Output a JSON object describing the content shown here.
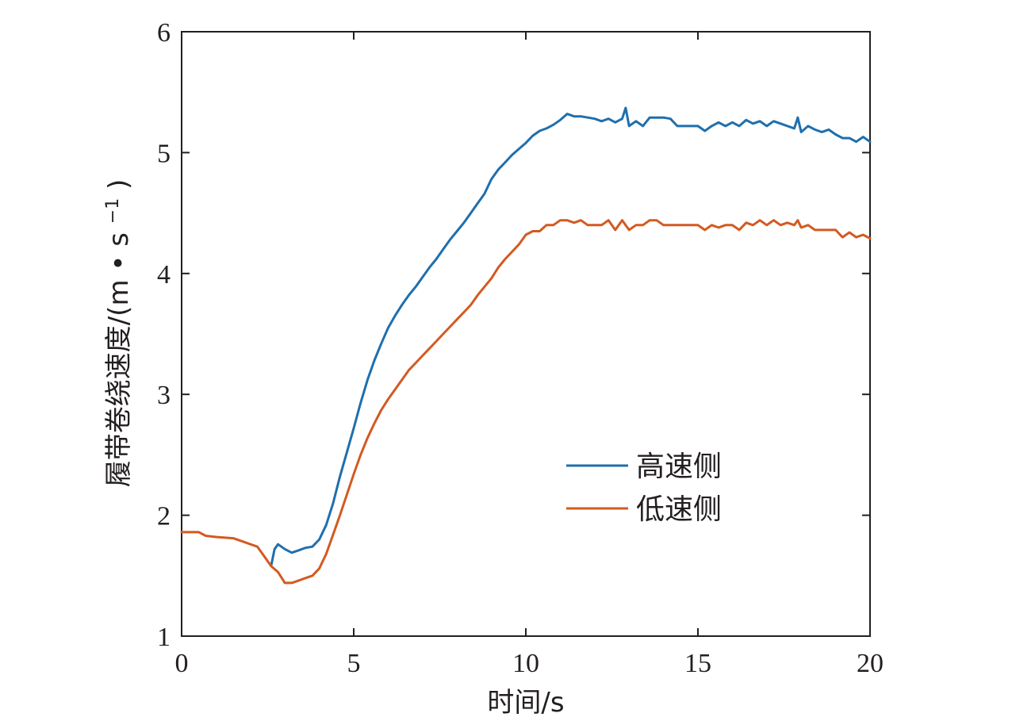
{
  "chart_data": {
    "type": "line",
    "xlabel": "时间/s",
    "ylabel_main": "履带卷绕速度/(m",
    "ylabel_dot": "•",
    "ylabel_s": "s",
    "ylabel_sup": "−1",
    "ylabel_close": ")",
    "xlim": [
      0,
      20
    ],
    "ylim": [
      1,
      6
    ],
    "xticks": [
      0,
      5,
      10,
      15,
      20
    ],
    "yticks": [
      1,
      2,
      3,
      4,
      5,
      6
    ],
    "xtick_labels": [
      "0",
      "5",
      "10",
      "15",
      "20"
    ],
    "ytick_labels": [
      "1",
      "2",
      "3",
      "4",
      "5",
      "6"
    ],
    "grid": false,
    "legend_position": "center-right",
    "series": [
      {
        "name": "高速侧",
        "color": "#1f6fad",
        "points": [
          [
            2.6,
            1.58
          ],
          [
            2.7,
            1.72
          ],
          [
            2.8,
            1.76
          ],
          [
            3.0,
            1.72
          ],
          [
            3.2,
            1.69
          ],
          [
            3.4,
            1.71
          ],
          [
            3.6,
            1.73
          ],
          [
            3.8,
            1.74
          ],
          [
            4.0,
            1.8
          ],
          [
            4.2,
            1.92
          ],
          [
            4.4,
            2.1
          ],
          [
            4.6,
            2.32
          ],
          [
            4.8,
            2.52
          ],
          [
            5.0,
            2.72
          ],
          [
            5.2,
            2.93
          ],
          [
            5.4,
            3.12
          ],
          [
            5.6,
            3.28
          ],
          [
            5.8,
            3.42
          ],
          [
            6.0,
            3.55
          ],
          [
            6.2,
            3.65
          ],
          [
            6.4,
            3.74
          ],
          [
            6.6,
            3.82
          ],
          [
            6.8,
            3.89
          ],
          [
            7.0,
            3.97
          ],
          [
            7.2,
            4.05
          ],
          [
            7.4,
            4.12
          ],
          [
            7.6,
            4.2
          ],
          [
            7.8,
            4.28
          ],
          [
            8.0,
            4.35
          ],
          [
            8.2,
            4.42
          ],
          [
            8.4,
            4.5
          ],
          [
            8.6,
            4.58
          ],
          [
            8.8,
            4.66
          ],
          [
            9.0,
            4.78
          ],
          [
            9.2,
            4.86
          ],
          [
            9.4,
            4.92
          ],
          [
            9.6,
            4.98
          ],
          [
            9.8,
            5.03
          ],
          [
            10.0,
            5.08
          ],
          [
            10.2,
            5.14
          ],
          [
            10.4,
            5.18
          ],
          [
            10.6,
            5.2
          ],
          [
            10.8,
            5.23
          ],
          [
            11.0,
            5.27
          ],
          [
            11.2,
            5.32
          ],
          [
            11.4,
            5.3
          ],
          [
            11.6,
            5.3
          ],
          [
            11.8,
            5.29
          ],
          [
            12.0,
            5.28
          ],
          [
            12.2,
            5.26
          ],
          [
            12.4,
            5.28
          ],
          [
            12.6,
            5.25
          ],
          [
            12.8,
            5.28
          ],
          [
            12.9,
            5.37
          ],
          [
            13.0,
            5.22
          ],
          [
            13.2,
            5.26
          ],
          [
            13.4,
            5.22
          ],
          [
            13.6,
            5.29
          ],
          [
            13.8,
            5.29
          ],
          [
            14.0,
            5.29
          ],
          [
            14.2,
            5.28
          ],
          [
            14.4,
            5.22
          ],
          [
            14.6,
            5.22
          ],
          [
            14.8,
            5.22
          ],
          [
            15.0,
            5.22
          ],
          [
            15.2,
            5.18
          ],
          [
            15.4,
            5.22
          ],
          [
            15.6,
            5.25
          ],
          [
            15.8,
            5.22
          ],
          [
            16.0,
            5.25
          ],
          [
            16.2,
            5.22
          ],
          [
            16.4,
            5.27
          ],
          [
            16.6,
            5.24
          ],
          [
            16.8,
            5.26
          ],
          [
            17.0,
            5.22
          ],
          [
            17.2,
            5.26
          ],
          [
            17.4,
            5.24
          ],
          [
            17.6,
            5.22
          ],
          [
            17.8,
            5.2
          ],
          [
            17.9,
            5.29
          ],
          [
            18.0,
            5.17
          ],
          [
            18.2,
            5.22
          ],
          [
            18.4,
            5.19
          ],
          [
            18.6,
            5.17
          ],
          [
            18.8,
            5.19
          ],
          [
            19.0,
            5.15
          ],
          [
            19.2,
            5.12
          ],
          [
            19.4,
            5.12
          ],
          [
            19.6,
            5.09
          ],
          [
            19.8,
            5.13
          ],
          [
            20.0,
            5.09
          ]
        ]
      },
      {
        "name": "低速侧",
        "color": "#d35a22",
        "points": [
          [
            0.0,
            1.86
          ],
          [
            0.5,
            1.86
          ],
          [
            0.7,
            1.83
          ],
          [
            1.0,
            1.82
          ],
          [
            1.5,
            1.81
          ],
          [
            1.8,
            1.78
          ],
          [
            2.0,
            1.76
          ],
          [
            2.2,
            1.74
          ],
          [
            2.4,
            1.66
          ],
          [
            2.6,
            1.58
          ],
          [
            2.8,
            1.53
          ],
          [
            3.0,
            1.44
          ],
          [
            3.2,
            1.44
          ],
          [
            3.4,
            1.46
          ],
          [
            3.6,
            1.48
          ],
          [
            3.8,
            1.5
          ],
          [
            4.0,
            1.56
          ],
          [
            4.2,
            1.68
          ],
          [
            4.4,
            1.84
          ],
          [
            4.6,
            2.0
          ],
          [
            4.8,
            2.17
          ],
          [
            5.0,
            2.34
          ],
          [
            5.2,
            2.5
          ],
          [
            5.4,
            2.64
          ],
          [
            5.6,
            2.76
          ],
          [
            5.8,
            2.87
          ],
          [
            6.0,
            2.96
          ],
          [
            6.2,
            3.04
          ],
          [
            6.4,
            3.12
          ],
          [
            6.6,
            3.2
          ],
          [
            6.8,
            3.26
          ],
          [
            7.0,
            3.32
          ],
          [
            7.2,
            3.38
          ],
          [
            7.4,
            3.44
          ],
          [
            7.6,
            3.5
          ],
          [
            7.8,
            3.56
          ],
          [
            8.0,
            3.62
          ],
          [
            8.2,
            3.68
          ],
          [
            8.4,
            3.74
          ],
          [
            8.6,
            3.82
          ],
          [
            8.8,
            3.89
          ],
          [
            9.0,
            3.96
          ],
          [
            9.2,
            4.05
          ],
          [
            9.4,
            4.12
          ],
          [
            9.6,
            4.18
          ],
          [
            9.8,
            4.24
          ],
          [
            10.0,
            4.32
          ],
          [
            10.2,
            4.35
          ],
          [
            10.4,
            4.35
          ],
          [
            10.6,
            4.4
          ],
          [
            10.8,
            4.4
          ],
          [
            11.0,
            4.44
          ],
          [
            11.2,
            4.44
          ],
          [
            11.4,
            4.42
          ],
          [
            11.6,
            4.44
          ],
          [
            11.8,
            4.4
          ],
          [
            12.0,
            4.4
          ],
          [
            12.2,
            4.4
          ],
          [
            12.4,
            4.44
          ],
          [
            12.6,
            4.36
          ],
          [
            12.8,
            4.44
          ],
          [
            13.0,
            4.36
          ],
          [
            13.2,
            4.4
          ],
          [
            13.4,
            4.4
          ],
          [
            13.6,
            4.44
          ],
          [
            13.8,
            4.44
          ],
          [
            14.0,
            4.4
          ],
          [
            14.2,
            4.4
          ],
          [
            14.4,
            4.4
          ],
          [
            14.6,
            4.4
          ],
          [
            14.8,
            4.4
          ],
          [
            15.0,
            4.4
          ],
          [
            15.2,
            4.36
          ],
          [
            15.4,
            4.4
          ],
          [
            15.6,
            4.38
          ],
          [
            15.8,
            4.4
          ],
          [
            16.0,
            4.4
          ],
          [
            16.2,
            4.36
          ],
          [
            16.4,
            4.42
          ],
          [
            16.6,
            4.4
          ],
          [
            16.8,
            4.44
          ],
          [
            17.0,
            4.4
          ],
          [
            17.2,
            4.44
          ],
          [
            17.4,
            4.4
          ],
          [
            17.6,
            4.42
          ],
          [
            17.8,
            4.4
          ],
          [
            17.9,
            4.44
          ],
          [
            18.0,
            4.38
          ],
          [
            18.2,
            4.4
          ],
          [
            18.4,
            4.36
          ],
          [
            18.6,
            4.36
          ],
          [
            18.8,
            4.36
          ],
          [
            19.0,
            4.36
          ],
          [
            19.2,
            4.3
          ],
          [
            19.4,
            4.34
          ],
          [
            19.6,
            4.3
          ],
          [
            19.8,
            4.32
          ],
          [
            20.0,
            4.29
          ]
        ]
      }
    ]
  }
}
